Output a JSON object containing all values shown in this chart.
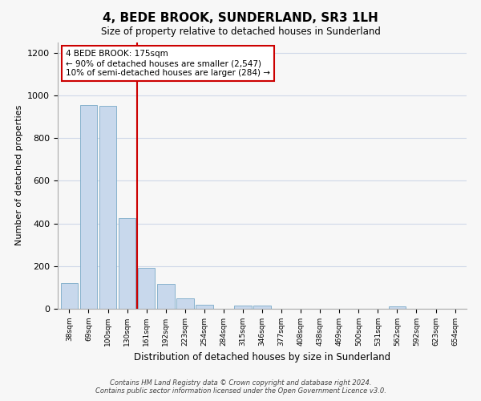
{
  "title": "4, BEDE BROOK, SUNDERLAND, SR3 1LH",
  "subtitle": "Size of property relative to detached houses in Sunderland",
  "xlabel": "Distribution of detached houses by size in Sunderland",
  "ylabel": "Number of detached properties",
  "bar_color": "#c8d8ec",
  "bar_edge_color": "#7aaac8",
  "categories": [
    "38sqm",
    "69sqm",
    "100sqm",
    "130sqm",
    "161sqm",
    "192sqm",
    "223sqm",
    "254sqm",
    "284sqm",
    "315sqm",
    "346sqm",
    "377sqm",
    "408sqm",
    "438sqm",
    "469sqm",
    "500sqm",
    "531sqm",
    "562sqm",
    "592sqm",
    "623sqm",
    "654sqm"
  ],
  "values": [
    120,
    955,
    950,
    425,
    190,
    115,
    47,
    20,
    0,
    15,
    15,
    0,
    0,
    0,
    0,
    0,
    0,
    12,
    0,
    0,
    0
  ],
  "property_line_x": 3.5,
  "property_line_color": "#cc0000",
  "annotation_line1": "4 BEDE BROOK: 175sqm",
  "annotation_line2": "← 90% of detached houses are smaller (2,547)",
  "annotation_line3": "10% of semi-detached houses are larger (284) →",
  "annotation_box_color": "#ffffff",
  "annotation_box_edge_color": "#cc0000",
  "ylim": [
    0,
    1250
  ],
  "yticks": [
    0,
    200,
    400,
    600,
    800,
    1000,
    1200
  ],
  "footer_line1": "Contains HM Land Registry data © Crown copyright and database right 2024.",
  "footer_line2": "Contains public sector information licensed under the Open Government Licence v3.0.",
  "background_color": "#f7f7f7",
  "grid_color": "#d0d8e8"
}
